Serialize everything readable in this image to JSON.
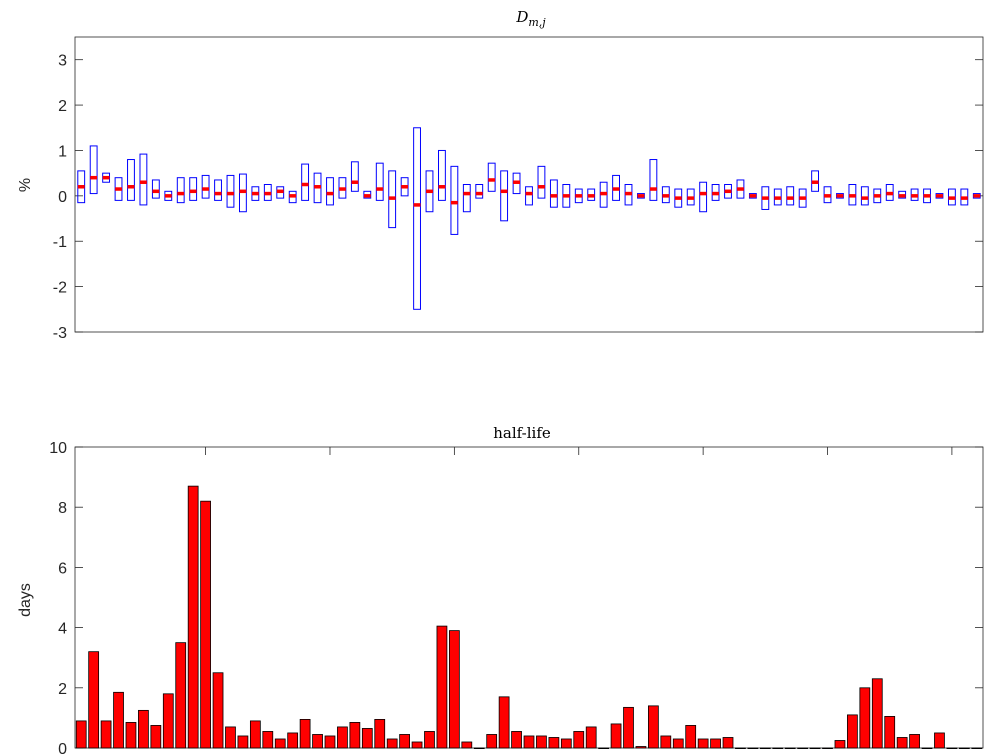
{
  "chart_data": [
    {
      "type": "boxplot",
      "title": {
        "symbol": "D",
        "subscript": "m,j"
      },
      "ylabel": "%",
      "ylim": [
        -3,
        3.5
      ],
      "yticks": [
        "-3",
        "-2",
        "-1",
        "0",
        "1",
        "2",
        "3"
      ],
      "ytick_values": [
        -3,
        -2,
        -1,
        0,
        1,
        2,
        3
      ],
      "colors": {
        "box": "#0000ff",
        "median": "#ff0000",
        "axis": "#262626"
      },
      "boxes": [
        {
          "low": -0.15,
          "high": 0.55,
          "median": 0.2
        },
        {
          "low": 0.05,
          "high": 1.1,
          "median": 0.4
        },
        {
          "low": 0.3,
          "high": 0.5,
          "median": 0.4
        },
        {
          "low": -0.1,
          "high": 0.4,
          "median": 0.15
        },
        {
          "low": -0.1,
          "high": 0.8,
          "median": 0.2
        },
        {
          "low": -0.2,
          "high": 0.92,
          "median": 0.3
        },
        {
          "low": -0.05,
          "high": 0.35,
          "median": 0.1
        },
        {
          "low": -0.1,
          "high": 0.1,
          "median": 0.0
        },
        {
          "low": -0.15,
          "high": 0.4,
          "median": 0.05
        },
        {
          "low": -0.1,
          "high": 0.4,
          "median": 0.1
        },
        {
          "low": -0.05,
          "high": 0.45,
          "median": 0.15
        },
        {
          "low": -0.1,
          "high": 0.35,
          "median": 0.05
        },
        {
          "low": -0.25,
          "high": 0.45,
          "median": 0.05
        },
        {
          "low": -0.35,
          "high": 0.48,
          "median": 0.1
        },
        {
          "low": -0.1,
          "high": 0.2,
          "median": 0.05
        },
        {
          "low": -0.1,
          "high": 0.25,
          "median": 0.05
        },
        {
          "low": -0.05,
          "high": 0.2,
          "median": 0.1
        },
        {
          "low": -0.15,
          "high": 0.1,
          "median": 0.0
        },
        {
          "low": -0.1,
          "high": 0.7,
          "median": 0.25
        },
        {
          "low": -0.15,
          "high": 0.5,
          "median": 0.2
        },
        {
          "low": -0.2,
          "high": 0.4,
          "median": 0.05
        },
        {
          "low": -0.05,
          "high": 0.4,
          "median": 0.15
        },
        {
          "low": 0.1,
          "high": 0.75,
          "median": 0.3
        },
        {
          "low": -0.05,
          "high": 0.1,
          "median": 0.0
        },
        {
          "low": -0.1,
          "high": 0.72,
          "median": 0.15
        },
        {
          "low": -0.7,
          "high": 0.55,
          "median": -0.05
        },
        {
          "low": 0.0,
          "high": 0.4,
          "median": 0.2
        },
        {
          "low": -2.5,
          "high": 1.5,
          "median": -0.2
        },
        {
          "low": -0.35,
          "high": 0.55,
          "median": 0.1
        },
        {
          "low": -0.1,
          "high": 1.0,
          "median": 0.2
        },
        {
          "low": -0.85,
          "high": 0.65,
          "median": -0.15
        },
        {
          "low": -0.35,
          "high": 0.25,
          "median": 0.05
        },
        {
          "low": -0.05,
          "high": 0.25,
          "median": 0.05
        },
        {
          "low": 0.1,
          "high": 0.72,
          "median": 0.35
        },
        {
          "low": -0.55,
          "high": 0.55,
          "median": 0.1
        },
        {
          "low": 0.05,
          "high": 0.5,
          "median": 0.3
        },
        {
          "low": -0.2,
          "high": 0.2,
          "median": 0.05
        },
        {
          "low": -0.05,
          "high": 0.65,
          "median": 0.2
        },
        {
          "low": -0.25,
          "high": 0.35,
          "median": 0.0
        },
        {
          "low": -0.25,
          "high": 0.25,
          "median": 0.0
        },
        {
          "low": -0.15,
          "high": 0.15,
          "median": 0.0
        },
        {
          "low": -0.1,
          "high": 0.15,
          "median": 0.0
        },
        {
          "low": -0.25,
          "high": 0.3,
          "median": 0.05
        },
        {
          "low": -0.1,
          "high": 0.45,
          "median": 0.15
        },
        {
          "low": -0.2,
          "high": 0.25,
          "median": 0.05
        },
        {
          "low": -0.05,
          "high": 0.05,
          "median": 0.0
        },
        {
          "low": -0.1,
          "high": 0.8,
          "median": 0.15
        },
        {
          "low": -0.15,
          "high": 0.2,
          "median": 0.0
        },
        {
          "low": -0.25,
          "high": 0.15,
          "median": -0.05
        },
        {
          "low": -0.2,
          "high": 0.15,
          "median": -0.05
        },
        {
          "low": -0.35,
          "high": 0.3,
          "median": 0.05
        },
        {
          "low": -0.1,
          "high": 0.25,
          "median": 0.05
        },
        {
          "low": -0.05,
          "high": 0.25,
          "median": 0.1
        },
        {
          "low": -0.05,
          "high": 0.35,
          "median": 0.15
        },
        {
          "low": -0.05,
          "high": 0.05,
          "median": 0.0
        },
        {
          "low": -0.3,
          "high": 0.2,
          "median": -0.05
        },
        {
          "low": -0.2,
          "high": 0.15,
          "median": -0.05
        },
        {
          "low": -0.2,
          "high": 0.2,
          "median": -0.05
        },
        {
          "low": -0.25,
          "high": 0.15,
          "median": -0.05
        },
        {
          "low": 0.1,
          "high": 0.55,
          "median": 0.3
        },
        {
          "low": -0.15,
          "high": 0.2,
          "median": 0.0
        },
        {
          "low": -0.05,
          "high": 0.05,
          "median": 0.0
        },
        {
          "low": -0.2,
          "high": 0.25,
          "median": 0.0
        },
        {
          "low": -0.2,
          "high": 0.2,
          "median": -0.05
        },
        {
          "low": -0.15,
          "high": 0.15,
          "median": 0.0
        },
        {
          "low": -0.1,
          "high": 0.25,
          "median": 0.05
        },
        {
          "low": -0.05,
          "high": 0.1,
          "median": 0.0
        },
        {
          "low": -0.1,
          "high": 0.15,
          "median": 0.0
        },
        {
          "low": -0.15,
          "high": 0.15,
          "median": 0.0
        },
        {
          "low": -0.05,
          "high": 0.05,
          "median": 0.0
        },
        {
          "low": -0.2,
          "high": 0.15,
          "median": -0.05
        },
        {
          "low": -0.2,
          "high": 0.15,
          "median": -0.05
        },
        {
          "low": -0.05,
          "high": 0.05,
          "median": 0.0
        }
      ]
    },
    {
      "type": "bar",
      "title": "half-life",
      "ylabel": "days",
      "ylim": [
        0,
        10
      ],
      "yticks": [
        "0",
        "2",
        "4",
        "6",
        "8",
        "10"
      ],
      "ytick_values": [
        0,
        2,
        4,
        6,
        8,
        10
      ],
      "colors": {
        "bar": "#ff0000",
        "edge": "#000000",
        "axis": "#262626"
      },
      "values": [
        0.9,
        3.2,
        0.9,
        1.85,
        0.85,
        1.25,
        0.75,
        1.8,
        3.5,
        8.7,
        8.2,
        2.5,
        0.7,
        0.4,
        0.9,
        0.55,
        0.3,
        0.5,
        0.95,
        0.45,
        0.4,
        0.7,
        0.85,
        0.65,
        0.95,
        0.3,
        0.45,
        0.2,
        0.55,
        4.05,
        3.9,
        0.2,
        0.0,
        0.45,
        1.7,
        0.55,
        0.4,
        0.4,
        0.35,
        0.3,
        0.55,
        0.7,
        0.0,
        0.8,
        1.35,
        0.05,
        1.4,
        0.4,
        0.3,
        0.75,
        0.3,
        0.3,
        0.35,
        0.0,
        0.0,
        0.0,
        0.0,
        0.0,
        0.0,
        0.0,
        0.0,
        0.25,
        1.1,
        2.0,
        2.3,
        1.05,
        0.35,
        0.45,
        0.0,
        0.5,
        0.0,
        0.0,
        0.0
      ]
    }
  ]
}
